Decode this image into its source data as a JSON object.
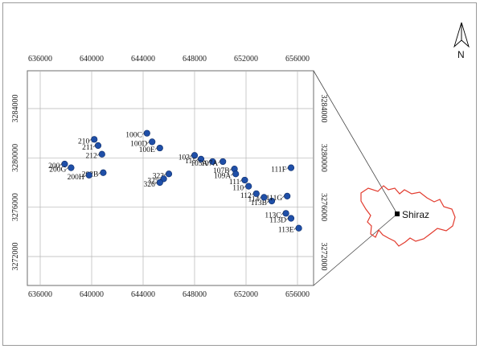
{
  "map": {
    "x_ticks": [
      "636000",
      "640000",
      "644000",
      "648000",
      "652000",
      "656000"
    ],
    "y_ticks": [
      "3272000",
      "3276000",
      "3280000",
      "3284000"
    ],
    "north_label": "N",
    "city_label": "Shiraz",
    "colors": {
      "point": "#1f4fa8",
      "boundary": "#e23b2e",
      "grid": "#b5b5b5",
      "frame": "#9a9a9a"
    },
    "points": [
      {
        "label": "210",
        "x": 640200,
        "y": 3281500
      },
      {
        "label": "211",
        "x": 640500,
        "y": 3281000
      },
      {
        "label": "212",
        "x": 640800,
        "y": 3280300
      },
      {
        "label": "200",
        "x": 637900,
        "y": 3279500
      },
      {
        "label": "200G",
        "x": 638400,
        "y": 3279200
      },
      {
        "label": "202B",
        "x": 640900,
        "y": 3278800
      },
      {
        "label": "200H",
        "x": 639800,
        "y": 3278600
      },
      {
        "label": "100C",
        "x": 644300,
        "y": 3282000
      },
      {
        "label": "100D",
        "x": 644700,
        "y": 3281300
      },
      {
        "label": "100E",
        "x": 645300,
        "y": 3280800
      },
      {
        "label": "323",
        "x": 646000,
        "y": 3278700
      },
      {
        "label": "325",
        "x": 645600,
        "y": 3278300
      },
      {
        "label": "326",
        "x": 645300,
        "y": 3278000
      },
      {
        "label": "103",
        "x": 648000,
        "y": 3280200
      },
      {
        "label": "115",
        "x": 648500,
        "y": 3279900
      },
      {
        "label": "105A",
        "x": 649400,
        "y": 3279700
      },
      {
        "label": "107A",
        "x": 650200,
        "y": 3279700
      },
      {
        "label": "107B",
        "x": 651100,
        "y": 3279100
      },
      {
        "label": "109A",
        "x": 651200,
        "y": 3278700
      },
      {
        "label": "111",
        "x": 651900,
        "y": 3278200
      },
      {
        "label": "110",
        "x": 652200,
        "y": 3277700
      },
      {
        "label": "112",
        "x": 652800,
        "y": 3277100
      },
      {
        "label": "113B",
        "x": 654000,
        "y": 3276500
      },
      {
        "label": "114",
        "x": 653400,
        "y": 3276800
      },
      {
        "label": "111F",
        "x": 655500,
        "y": 3279200
      },
      {
        "label": "111G",
        "x": 655200,
        "y": 3276900
      },
      {
        "label": "113C",
        "x": 655100,
        "y": 3275500
      },
      {
        "label": "113D",
        "x": 655500,
        "y": 3275100
      },
      {
        "label": "113E",
        "x": 656100,
        "y": 3274300
      }
    ]
  }
}
